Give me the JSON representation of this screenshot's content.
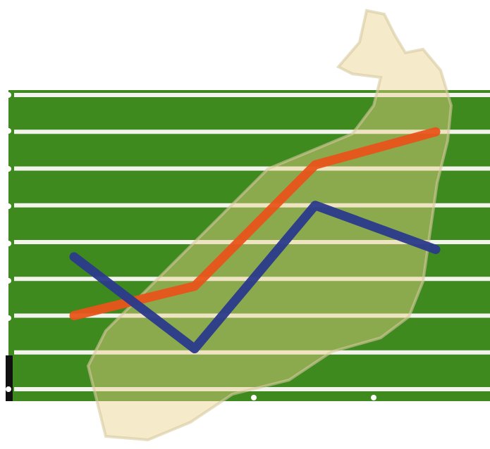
{
  "chart_data": {
    "type": "line",
    "categories": [
      null,
      null,
      null,
      null
    ],
    "series": [
      {
        "color": "#e8541a",
        "values": [
          2.0,
          2.8,
          6.1,
          7.0
        ]
      },
      {
        "color": "#2a3a8c",
        "values": [
          3.6,
          1.1,
          5.0,
          3.8
        ]
      }
    ],
    "ylim": [
      0,
      8
    ],
    "yticks": [
      0,
      1,
      2,
      3,
      4,
      5,
      6,
      7,
      8
    ],
    "grid": true,
    "grid_color": "#f4f4ee",
    "background": "#3f8a1e"
  }
}
